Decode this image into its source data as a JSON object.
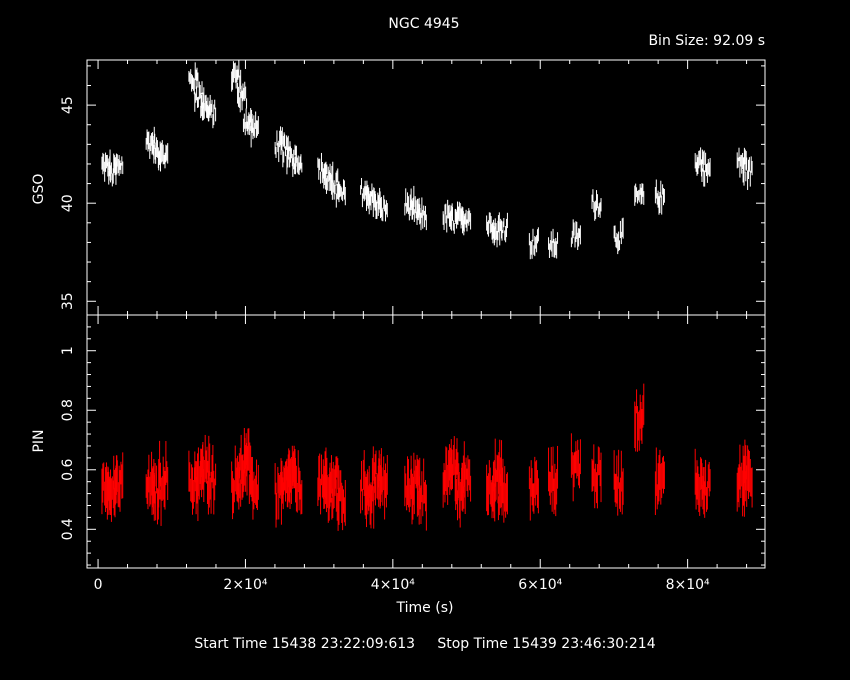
{
  "title": "NGC 4945",
  "bin_size_text": "Bin Size: 92.09 s",
  "xlabel": "Time (s)",
  "start_label": "Start Time 15438 23:22:09:613",
  "stop_label": "Stop Time 15439 23:46:30:214",
  "colors": {
    "background": "#000000",
    "gso": "#ffffff",
    "pin": "#ff0000",
    "axes": "#ffffff"
  },
  "chart_data": [
    {
      "type": "line",
      "panel": "top",
      "ylabel": "GSO",
      "xlim": [
        -1500,
        90500
      ],
      "ylim": [
        34.3,
        47.3
      ],
      "yticks": [
        35,
        40,
        45
      ],
      "ytick_labels": [
        "35",
        "40",
        "45"
      ],
      "series": [
        {
          "x": [
            1200,
            2000,
            2800,
            7200,
            8000,
            8900,
            13000,
            13800,
            14600,
            15400,
            18800,
            19600,
            20400,
            21200,
            24700,
            25500,
            26300,
            27100,
            30500,
            31300,
            32100,
            33000,
            36300,
            37100,
            37900,
            38700,
            42300,
            43100,
            44000,
            47500,
            48400,
            49200,
            50000,
            53400,
            54200,
            55000,
            59200,
            61800,
            64900,
            67700,
            70700,
            73500,
            76300,
            81700,
            82500,
            87400,
            88200
          ],
          "y": [
            41.9,
            41.5,
            42.0,
            43.1,
            42.7,
            42.4,
            46.3,
            45.5,
            44.9,
            44.6,
            46.5,
            45.4,
            44.2,
            43.8,
            43.0,
            42.7,
            42.4,
            42.2,
            41.7,
            41.2,
            41.0,
            40.4,
            40.6,
            40.3,
            40.0,
            39.7,
            39.9,
            39.5,
            39.4,
            39.3,
            39.1,
            39.2,
            39.3,
            38.9,
            38.6,
            38.8,
            38.0,
            37.9,
            38.3,
            40.0,
            38.3,
            40.3,
            40.3,
            42.2,
            41.7,
            42.1,
            41.6
          ]
        }
      ]
    },
    {
      "type": "line",
      "panel": "bottom",
      "ylabel": "PIN",
      "xlabel": "Time (s)",
      "xlim": [
        -1500,
        90500
      ],
      "ylim": [
        0.27,
        1.12
      ],
      "yticks": [
        0.4,
        0.6,
        0.8,
        1
      ],
      "ytick_labels": [
        "0.4",
        "0.6",
        "0.8",
        "1"
      ],
      "xticks": [
        0,
        20000,
        40000,
        60000,
        80000
      ],
      "xtick_labels": [
        "0",
        "2×10⁴",
        "4×10⁴",
        "6×10⁴",
        "8×10⁴"
      ],
      "series": [
        {
          "x": [
            1200,
            2000,
            2800,
            7200,
            8000,
            8900,
            13000,
            13800,
            14600,
            15400,
            18800,
            19600,
            20400,
            21200,
            24700,
            25500,
            26300,
            27100,
            30500,
            31300,
            32100,
            33000,
            36300,
            37100,
            37900,
            38700,
            42300,
            43100,
            44000,
            47500,
            48400,
            49200,
            50000,
            53400,
            54200,
            55000,
            59200,
            61800,
            64900,
            67700,
            70700,
            73500,
            76300,
            81700,
            82500,
            87400,
            88200
          ],
          "y": [
            0.56,
            0.52,
            0.55,
            0.54,
            0.52,
            0.58,
            0.55,
            0.58,
            0.6,
            0.57,
            0.56,
            0.6,
            0.62,
            0.54,
            0.52,
            0.54,
            0.58,
            0.55,
            0.55,
            0.52,
            0.56,
            0.5,
            0.54,
            0.52,
            0.58,
            0.55,
            0.53,
            0.56,
            0.52,
            0.58,
            0.6,
            0.52,
            0.58,
            0.54,
            0.58,
            0.52,
            0.54,
            0.56,
            0.62,
            0.58,
            0.56,
            0.78,
            0.56,
            0.56,
            0.54,
            0.56,
            0.58
          ]
        }
      ]
    }
  ]
}
